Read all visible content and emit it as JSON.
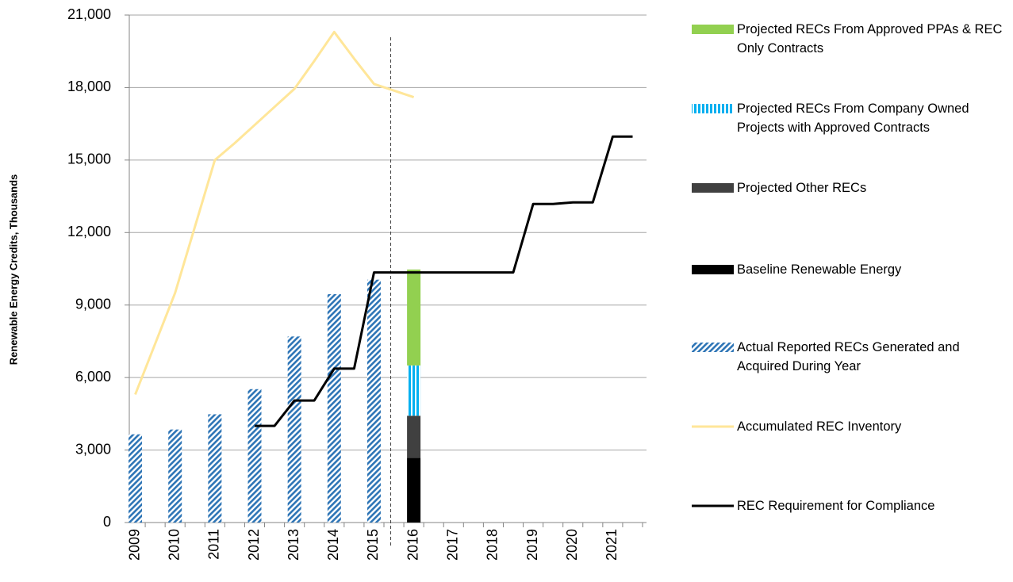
{
  "chart_data": {
    "type": "combo",
    "y_label": "Renewable Energy Credits, Thousands",
    "categories": [
      "2009",
      null,
      "2010",
      null,
      "2011",
      null,
      "2012",
      null,
      "2013",
      null,
      "2014",
      null,
      "2015",
      null,
      "2016",
      null,
      "2017",
      null,
      "2018",
      null,
      "2019",
      null,
      "2020",
      null,
      "2021",
      null
    ],
    "ylim": [
      0,
      21000
    ],
    "yticks": [
      0,
      {
        "value": 3000,
        "label": "3,000"
      },
      {
        "value": 6000,
        "label": "6,000"
      },
      {
        "value": 9000,
        "label": "9,000"
      },
      {
        "value": 12000,
        "label": "12,000"
      },
      {
        "value": 15000,
        "label": "15,000"
      },
      {
        "value": 18000,
        "label": "18,000"
      },
      {
        "value": 21000,
        "label": "21,000"
      }
    ],
    "grid": true,
    "legend": "right",
    "series": [
      {
        "name": "Projected RECs From Approved PPAs & REC Only Contracts",
        "kind": "bar",
        "stack": true,
        "color": "#92d050",
        "pattern": "solid",
        "values": [
          null,
          null,
          null,
          null,
          null,
          null,
          null,
          null,
          null,
          null,
          null,
          null,
          null,
          null,
          3970,
          null,
          null,
          null,
          null,
          null,
          null,
          null,
          null,
          null,
          null,
          null
        ]
      },
      {
        "name": "Projected RECs From Company Owned Projects with Approved Contracts",
        "kind": "bar",
        "stack": true,
        "color": "#00b0f0",
        "pattern": "vstripe",
        "values": [
          null,
          null,
          null,
          null,
          null,
          null,
          null,
          null,
          null,
          null,
          null,
          null,
          null,
          null,
          2080,
          null,
          null,
          null,
          null,
          null,
          null,
          null,
          null,
          null,
          null,
          null
        ]
      },
      {
        "name": "Projected Other RECs",
        "kind": "bar",
        "stack": true,
        "color": "#404040",
        "pattern": "solid",
        "values": [
          null,
          null,
          null,
          null,
          null,
          null,
          null,
          null,
          null,
          null,
          null,
          null,
          null,
          null,
          1740,
          null,
          null,
          null,
          null,
          null,
          null,
          null,
          null,
          null,
          null,
          null
        ]
      },
      {
        "name": "Baseline Renewable Energy",
        "kind": "bar",
        "stack": true,
        "color": "#000000",
        "pattern": "solid",
        "values": [
          null,
          null,
          null,
          null,
          null,
          null,
          null,
          null,
          null,
          null,
          null,
          null,
          null,
          null,
          2680,
          null,
          null,
          null,
          null,
          null,
          null,
          null,
          null,
          null,
          null,
          null
        ]
      },
      {
        "name": "Actual Reported RECs Generated and Acquired During Year",
        "kind": "bar",
        "stack": false,
        "color": "#2e75b6",
        "pattern": "diag",
        "values": [
          3650,
          null,
          3850,
          null,
          4480,
          null,
          5520,
          null,
          7700,
          null,
          9450,
          null,
          10050,
          null,
          null,
          null,
          null,
          null,
          null,
          null,
          null,
          null,
          null,
          null,
          null,
          null
        ]
      },
      {
        "name": "Accumulated REC Inventory",
        "kind": "line",
        "color": "#ffe699",
        "values": [
          5300,
          7400,
          9500,
          12250,
          15000,
          15700,
          16450,
          17200,
          17950,
          19100,
          20300,
          19200,
          18150,
          17875,
          17600,
          null,
          null,
          null,
          null,
          null,
          null,
          null,
          null,
          null,
          null,
          null
        ]
      },
      {
        "name": "REC Requirement for Compliance",
        "kind": "line",
        "color": "#000000",
        "values": [
          null,
          null,
          null,
          null,
          null,
          null,
          4000,
          4000,
          5050,
          5050,
          6370,
          6370,
          10350,
          10350,
          10350,
          10350,
          10350,
          10350,
          10350,
          10350,
          13180,
          13180,
          13250,
          13250,
          15970,
          15970
        ]
      }
    ]
  }
}
